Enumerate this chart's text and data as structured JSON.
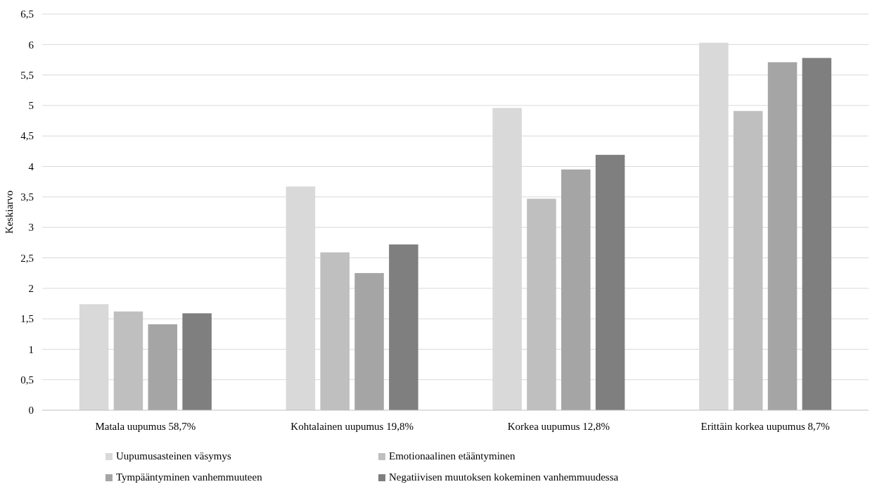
{
  "chart_data": {
    "type": "bar",
    "ylabel": "Keskiarvo",
    "categories": [
      "Matala uupumus 58,7%",
      "Kohtalainen uupumus 19,8%",
      "Korkea uupumus 12,8%",
      "Erittäin korkea uupumus 8,7%"
    ],
    "series": [
      {
        "name": "Uupumusasteinen väsymys",
        "color": "#d9d9d9",
        "values": [
          1.74,
          3.67,
          4.96,
          6.03
        ]
      },
      {
        "name": "Emotionaalinen etääntyminen",
        "color": "#bfbfbf",
        "values": [
          1.62,
          2.59,
          3.47,
          4.91
        ]
      },
      {
        "name": "Tympääntyminen vanhemmuuteen",
        "color": "#a5a5a5",
        "values": [
          1.41,
          2.25,
          3.95,
          5.71
        ]
      },
      {
        "name": "Negatiivisen muutoksen kokeminen vanhemmuudessa",
        "color": "#7f7f7f",
        "values": [
          1.59,
          2.72,
          4.19,
          5.78
        ]
      }
    ],
    "ylim": [
      0,
      6.5
    ],
    "yticks": [
      0,
      {
        "value": 0.5,
        "label": "0,5"
      },
      1,
      {
        "value": 1.5,
        "label": "1,5"
      },
      2,
      {
        "value": 2.5,
        "label": "2,5"
      },
      3,
      {
        "value": 3.5,
        "label": "3,5"
      },
      4,
      {
        "value": 4.5,
        "label": "4,5"
      },
      5,
      {
        "value": 5.5,
        "label": "5,5"
      },
      6,
      {
        "value": 6.5,
        "label": "6,5"
      }
    ],
    "grid": "y",
    "legend": "bottom"
  }
}
